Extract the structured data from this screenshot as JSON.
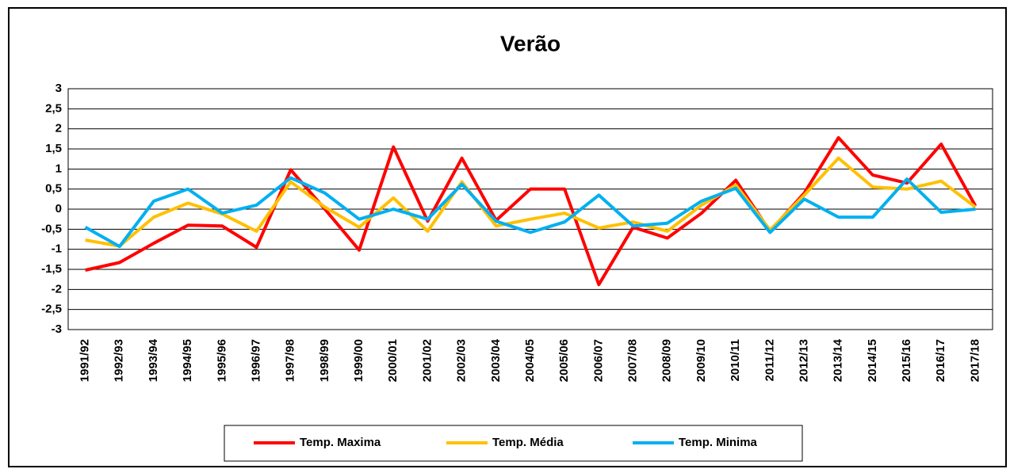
{
  "chart_data": {
    "type": "line",
    "title": "Verão",
    "categories": [
      "1991/92",
      "1992/93",
      "1993/94",
      "1994/95",
      "1995/96",
      "1996/97",
      "1997/98",
      "1998/99",
      "1999/00",
      "2000/01",
      "2001/02",
      "2002/03",
      "2003/04",
      "2004/05",
      "2005/06",
      "2006/07",
      "2007/08",
      "2008/09",
      "2009/10",
      "2010/11",
      "2011/12",
      "2012/13",
      "2013/14",
      "2014/15",
      "2015/16",
      "2016/17",
      "2017/18"
    ],
    "series": [
      {
        "name": "Temp. Maxima",
        "color": "#ff0000",
        "values": [
          -1.52,
          -1.33,
          -0.85,
          -0.4,
          -0.42,
          -0.95,
          0.98,
          0.0,
          -1.02,
          1.55,
          -0.3,
          1.27,
          -0.28,
          0.5,
          0.5,
          -1.88,
          -0.45,
          -0.72,
          -0.1,
          0.72,
          -0.55,
          0.4,
          1.78,
          0.85,
          0.65,
          1.62,
          0.08
        ]
      },
      {
        "name": "Temp. Média",
        "color": "#ffc000",
        "values": [
          -0.77,
          -0.92,
          -0.2,
          0.15,
          -0.12,
          -0.55,
          0.68,
          0.05,
          -0.45,
          0.28,
          -0.55,
          0.68,
          -0.42,
          -0.25,
          -0.1,
          -0.47,
          -0.32,
          -0.55,
          0.1,
          0.6,
          -0.52,
          0.35,
          1.27,
          0.55,
          0.5,
          0.7,
          0.05
        ]
      },
      {
        "name": "Temp. Minima",
        "color": "#00b0f0",
        "values": [
          -0.45,
          -0.93,
          0.2,
          0.5,
          -0.1,
          0.1,
          0.78,
          0.4,
          -0.25,
          0.0,
          -0.25,
          0.62,
          -0.3,
          -0.58,
          -0.32,
          0.35,
          -0.42,
          -0.35,
          0.2,
          0.52,
          -0.58,
          0.25,
          -0.2,
          -0.2,
          0.75,
          -0.08,
          0.0
        ]
      }
    ],
    "ylim": [
      -3,
      3
    ],
    "yticks": [
      -3,
      {
        "value": -2.5,
        "label": "-2,5"
      },
      -2,
      {
        "value": -1.5,
        "label": "-1,5"
      },
      -1,
      {
        "value": -0.5,
        "label": "-0,5"
      },
      0,
      {
        "value": 0.5,
        "label": "0,5"
      },
      1,
      {
        "value": 1.5,
        "label": "1,5"
      },
      2,
      {
        "value": 2.5,
        "label": "2,5"
      },
      3
    ],
    "grid": true,
    "legend": "bottom"
  }
}
